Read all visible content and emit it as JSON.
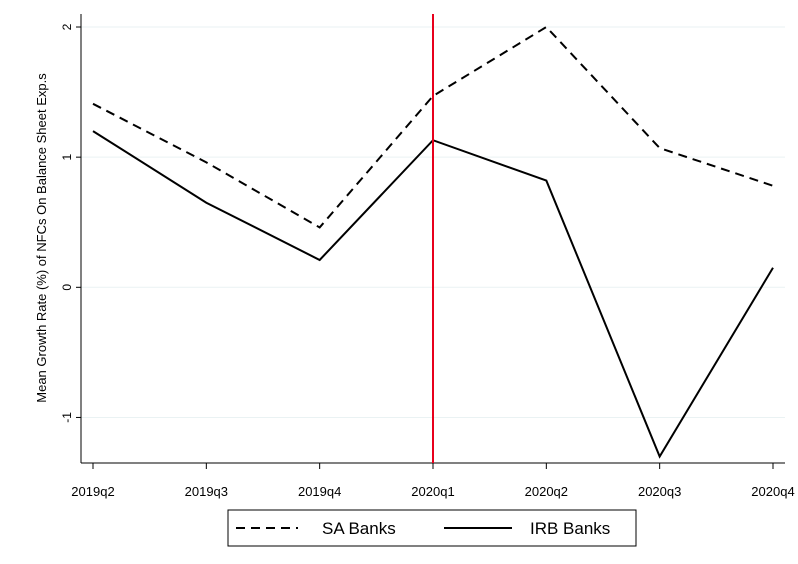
{
  "chart_data": {
    "type": "line",
    "title": "",
    "xlabel": "",
    "ylabel": "Mean Growth Rate (%) of NFCs On Balance Sheet Exp.s",
    "categories": [
      "2019q2",
      "2019q3",
      "2019q4",
      "2020q1",
      "2020q2",
      "2020q3",
      "2020q4"
    ],
    "yticks": [
      "-1",
      "0",
      "1",
      "2"
    ],
    "ylim": [
      -1.35,
      2.1
    ],
    "grid": "horizontal",
    "legend_position": "bottom",
    "vline": {
      "category": "2020q1",
      "color": "#e8001c"
    },
    "series": [
      {
        "name": "SA Banks",
        "style": "dashed",
        "color": "#000000",
        "values": [
          1.41,
          0.96,
          0.46,
          1.47,
          2.0,
          1.07,
          0.78
        ]
      },
      {
        "name": "IRB Banks",
        "style": "solid",
        "color": "#000000",
        "values": [
          1.2,
          0.65,
          0.21,
          1.13,
          0.82,
          -1.3,
          0.15
        ]
      }
    ]
  }
}
